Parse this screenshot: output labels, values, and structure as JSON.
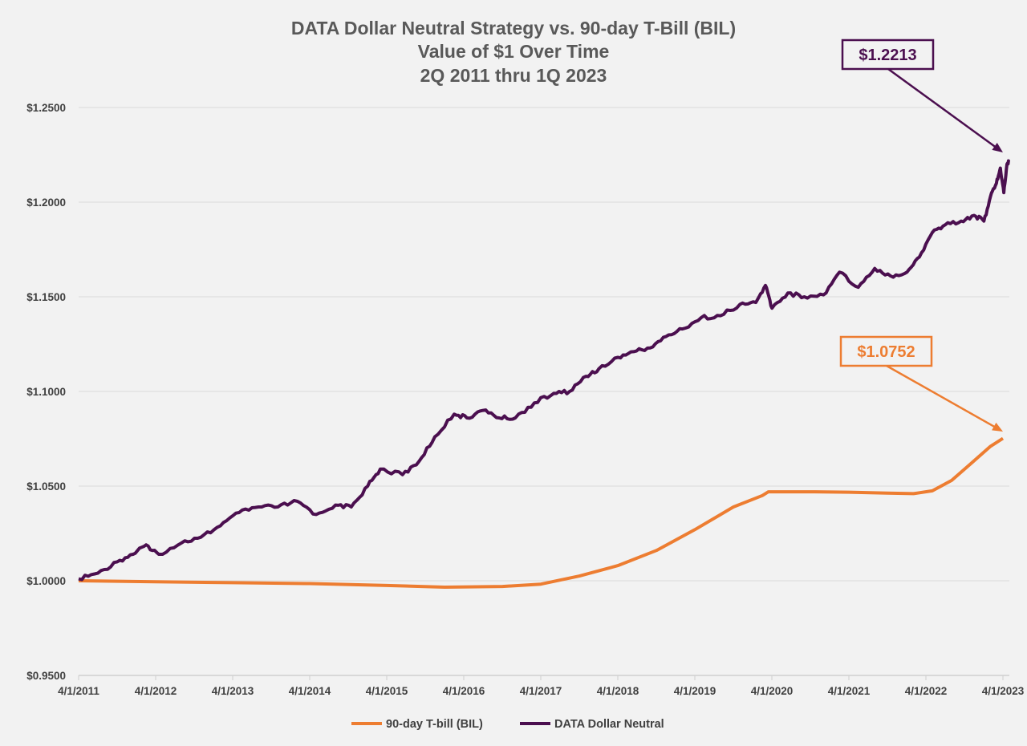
{
  "chart_data": {
    "type": "line",
    "title": [
      "DATA Dollar Neutral Strategy vs. 90-day T-Bill (BIL)",
      "Value of $1 Over Time",
      "2Q 2011 thru 1Q 2023"
    ],
    "xlabel": "",
    "ylabel": "",
    "x_ticks": [
      "4/1/2011",
      "4/1/2012",
      "4/1/2013",
      "4/1/2014",
      "4/1/2015",
      "4/1/2016",
      "4/1/2017",
      "4/1/2018",
      "4/1/2019",
      "4/1/2020",
      "4/1/2021",
      "4/1/2022",
      "4/1/2023"
    ],
    "xlim": [
      "2011-04-01",
      "2023-04-01"
    ],
    "y_ticks": [
      "$0.9500",
      "$1.0000",
      "$1.0500",
      "$1.1000",
      "$1.1500",
      "$1.2000",
      "$1.2500"
    ],
    "ylim": [
      0.95,
      1.25
    ],
    "grid": "horizontal",
    "legend": "bottom",
    "series": [
      {
        "name": "90-day T-bill (BIL)",
        "color": "#ed7d31",
        "points": [
          [
            "2011-04-01",
            1.0
          ],
          [
            "2012-04-01",
            0.9995
          ],
          [
            "2013-04-01",
            0.999
          ],
          [
            "2014-04-01",
            0.9985
          ],
          [
            "2015-04-01",
            0.9975
          ],
          [
            "2016-01-01",
            0.9966
          ],
          [
            "2016-10-01",
            0.997
          ],
          [
            "2017-04-01",
            0.9982
          ],
          [
            "2017-10-01",
            1.0025
          ],
          [
            "2018-04-01",
            1.008
          ],
          [
            "2018-10-01",
            1.016
          ],
          [
            "2019-04-01",
            1.027
          ],
          [
            "2019-10-01",
            1.039
          ],
          [
            "2020-02-15",
            1.045
          ],
          [
            "2020-03-15",
            1.047
          ],
          [
            "2020-10-01",
            1.047
          ],
          [
            "2021-04-01",
            1.0468
          ],
          [
            "2021-10-01",
            1.0463
          ],
          [
            "2022-02-01",
            1.046
          ],
          [
            "2022-05-01",
            1.0475
          ],
          [
            "2022-08-01",
            1.053
          ],
          [
            "2022-11-01",
            1.062
          ],
          [
            "2023-02-01",
            1.071
          ],
          [
            "2023-04-01",
            1.0752
          ]
        ]
      },
      {
        "name": "DATA Dollar Neutral",
        "color": "#4b0f4f",
        "points": [
          [
            "2011-04-01",
            1.001
          ],
          [
            "2011-07-01",
            1.004
          ],
          [
            "2011-10-01",
            1.01
          ],
          [
            "2011-12-15",
            1.014
          ],
          [
            "2012-02-15",
            1.019
          ],
          [
            "2012-04-15",
            1.014
          ],
          [
            "2012-08-01",
            1.02
          ],
          [
            "2012-11-01",
            1.023
          ],
          [
            "2013-02-01",
            1.029
          ],
          [
            "2013-05-01",
            1.036
          ],
          [
            "2013-08-01",
            1.039
          ],
          [
            "2013-11-01",
            1.039
          ],
          [
            "2014-02-01",
            1.042
          ],
          [
            "2014-05-01",
            1.035
          ],
          [
            "2014-08-01",
            1.04
          ],
          [
            "2014-10-15",
            1.039
          ],
          [
            "2015-01-01",
            1.05
          ],
          [
            "2015-03-01",
            1.059
          ],
          [
            "2015-06-15",
            1.056
          ],
          [
            "2015-09-01",
            1.063
          ],
          [
            "2015-11-15",
            1.076
          ],
          [
            "2016-02-15",
            1.088
          ],
          [
            "2016-04-15",
            1.086
          ],
          [
            "2016-07-01",
            1.09
          ],
          [
            "2016-09-15",
            1.086
          ],
          [
            "2016-12-01",
            1.086
          ],
          [
            "2017-03-01",
            1.094
          ],
          [
            "2017-06-01",
            1.099
          ],
          [
            "2017-08-15",
            1.1
          ],
          [
            "2017-11-01",
            1.108
          ],
          [
            "2018-01-01",
            1.112
          ],
          [
            "2018-04-01",
            1.118
          ],
          [
            "2018-06-15",
            1.121
          ],
          [
            "2018-09-01",
            1.123
          ],
          [
            "2018-11-15",
            1.129
          ],
          [
            "2019-02-01",
            1.133
          ],
          [
            "2019-05-01",
            1.139
          ],
          [
            "2019-08-01",
            1.14
          ],
          [
            "2019-11-01",
            1.146
          ],
          [
            "2020-01-15",
            1.147
          ],
          [
            "2020-03-01",
            1.156
          ],
          [
            "2020-04-01",
            1.144
          ],
          [
            "2020-06-15",
            1.152
          ],
          [
            "2020-09-01",
            1.15
          ],
          [
            "2020-12-01",
            1.151
          ],
          [
            "2021-02-15",
            1.163
          ],
          [
            "2021-05-15",
            1.155
          ],
          [
            "2021-08-01",
            1.165
          ],
          [
            "2021-10-15",
            1.161
          ],
          [
            "2022-01-01",
            1.163
          ],
          [
            "2022-03-01",
            1.171
          ],
          [
            "2022-05-01",
            1.184
          ],
          [
            "2022-07-01",
            1.188
          ],
          [
            "2022-09-15",
            1.19
          ],
          [
            "2022-11-15",
            1.193
          ],
          [
            "2023-01-01",
            1.19
          ],
          [
            "2023-02-01",
            1.203
          ],
          [
            "2023-03-01",
            1.21
          ],
          [
            "2023-03-20",
            1.218
          ],
          [
            "2023-04-05",
            1.205
          ],
          [
            "2023-04-20",
            1.22
          ],
          [
            "2023-05-01",
            1.2213
          ]
        ]
      }
    ],
    "annotations": [
      {
        "text": "$1.2213",
        "series": "DATA Dollar Neutral",
        "color": "#4b0f4f"
      },
      {
        "text": "$1.0752",
        "series": "90-day T-bill (BIL)",
        "color": "#ed7d31"
      }
    ]
  }
}
